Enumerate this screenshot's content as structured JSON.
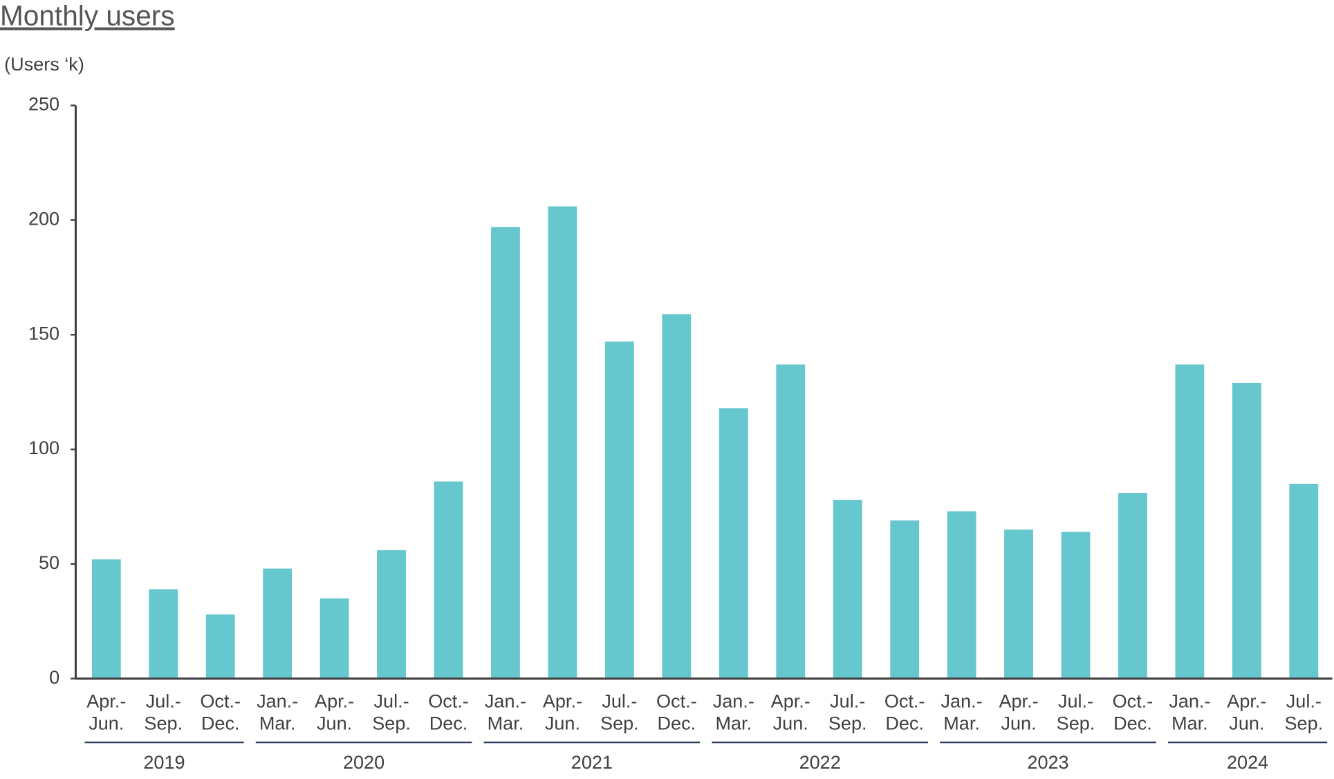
{
  "chart_data": {
    "type": "bar",
    "title": "Monthly users",
    "y_label": "(Users ‘k)",
    "groups": [
      {
        "label": "2019",
        "categories": [
          [
            "Apr.-",
            "Jun."
          ],
          [
            "Jul.-",
            "Sep."
          ],
          [
            "Oct.-",
            "Dec."
          ]
        ]
      },
      {
        "label": "2020",
        "categories": [
          [
            "Jan.-",
            "Mar."
          ],
          [
            "Apr.-",
            "Jun."
          ],
          [
            "Jul.-",
            "Sep."
          ],
          [
            "Oct.-",
            "Dec."
          ]
        ]
      },
      {
        "label": "2021",
        "categories": [
          [
            "Jan.-",
            "Mar."
          ],
          [
            "Apr.-",
            "Jun."
          ],
          [
            "Jul.-",
            "Sep."
          ],
          [
            "Oct.-",
            "Dec."
          ]
        ]
      },
      {
        "label": "2022",
        "categories": [
          [
            "Jan.-",
            "Mar."
          ],
          [
            "Apr.-",
            "Jun."
          ],
          [
            "Jul.-",
            "Sep."
          ],
          [
            "Oct.-",
            "Dec."
          ]
        ]
      },
      {
        "label": "2023",
        "categories": [
          [
            "Jan.-",
            "Mar."
          ],
          [
            "Apr.-",
            "Jun."
          ],
          [
            "Jul.-",
            "Sep."
          ],
          [
            "Oct.-",
            "Dec."
          ]
        ]
      },
      {
        "label": "2024",
        "categories": [
          [
            "Jan.-",
            "Mar."
          ],
          [
            "Apr.-",
            "Jun."
          ],
          [
            "Jul.-",
            "Sep."
          ]
        ]
      }
    ],
    "values": [
      52,
      39,
      28,
      48,
      35,
      56,
      86,
      197,
      206,
      147,
      159,
      118,
      137,
      78,
      69,
      73,
      65,
      64,
      81,
      137,
      129,
      85
    ],
    "color": "#66c7cf",
    "ylim": [
      0,
      250
    ],
    "yticks": [
      0,
      50,
      100,
      150,
      200,
      250
    ],
    "grid": false
  }
}
